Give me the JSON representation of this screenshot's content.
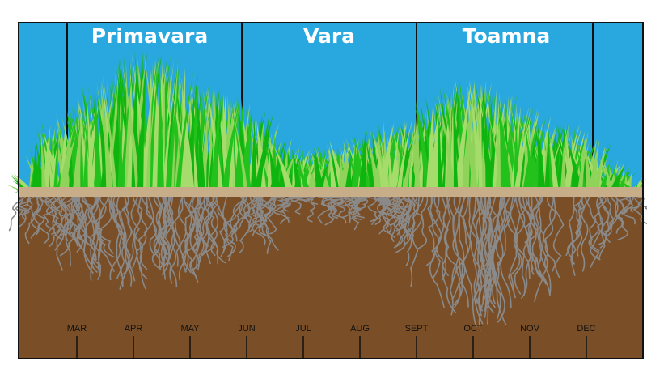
{
  "seasons": [
    "Primavara",
    "Vara",
    "Toamna"
  ],
  "months": [
    "MAR",
    "APR",
    "MAY",
    "JUN",
    "JUL",
    "AUG",
    "SEPT",
    "OCT",
    "NOV",
    "DEC"
  ]
}
